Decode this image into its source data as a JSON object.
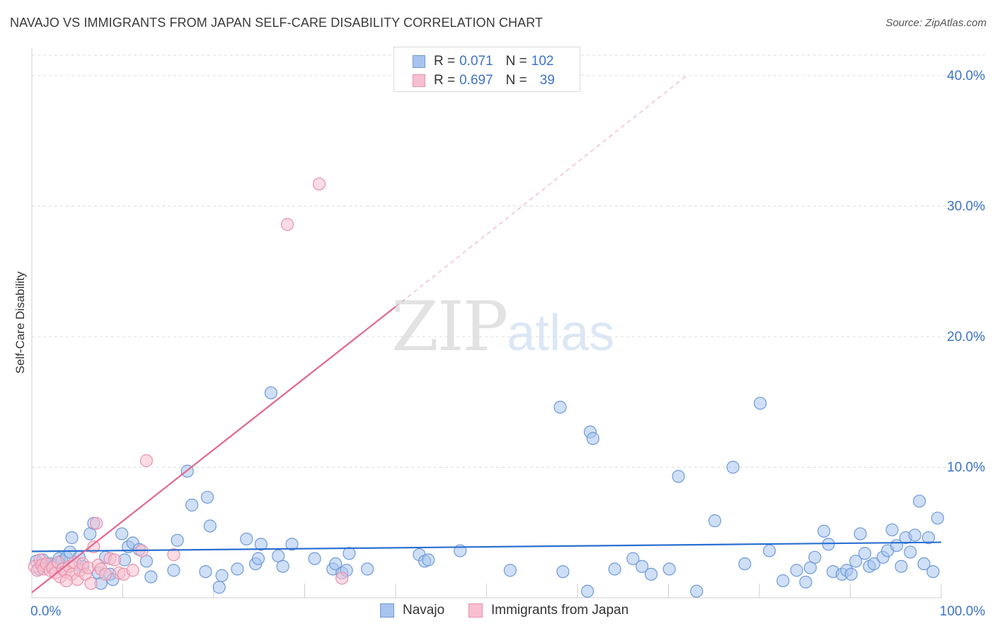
{
  "header": {
    "title": "NAVAJO VS IMMIGRANTS FROM JAPAN SELF-CARE DISABILITY CORRELATION CHART",
    "source": "Source: ZipAtlas.com"
  },
  "watermark": {
    "zip": "ZIP",
    "atlas": "atlas"
  },
  "legend": {
    "r_label": "R =",
    "n_label": "N =",
    "series": [
      {
        "name": "Navajo",
        "r": "0.071",
        "n": "102",
        "fill": "#a8c4ee",
        "stroke": "#6f9ad8"
      },
      {
        "name": "Immigrants from Japan",
        "r": "0.697",
        "n": "39",
        "fill": "#f7bfd0",
        "stroke": "#e891aa"
      }
    ]
  },
  "colors": {
    "navajo_point_fill": "#a8c4ee",
    "navajo_point_stroke": "#6f9ad8",
    "navajo_line": "#2a6fd1",
    "japan_point_fill": "#f7bfd0",
    "japan_point_stroke": "#e891aa",
    "japan_line": "#e4668f",
    "tick_label": "#3d73c8",
    "grid": "#dcdcdc"
  },
  "chart_data": {
    "type": "scatter",
    "title": "NAVAJO VS IMMIGRANTS FROM JAPAN SELF-CARE DISABILITY CORRELATION CHART",
    "xlabel": "",
    "ylabel": "Self-Care Disability",
    "xlim": [
      0,
      100
    ],
    "ylim": [
      0,
      42
    ],
    "x_tick_labels": [
      {
        "value": 0,
        "label": "0.0%"
      },
      {
        "value": 100,
        "label": "100.0%"
      }
    ],
    "y_ticks": [
      {
        "value": 10,
        "label": "10.0%"
      },
      {
        "value": 20,
        "label": "20.0%"
      },
      {
        "value": 30,
        "label": "30.0%"
      },
      {
        "value": 40,
        "label": "40.0%"
      }
    ],
    "x_minor_ticks": [
      10,
      20,
      30,
      40,
      50,
      60,
      70,
      80,
      90,
      100
    ],
    "series": [
      {
        "name": "Navajo",
        "trend": {
          "x0": 0,
          "y0": 3.55,
          "x1": 100,
          "y1": 4.25
        },
        "points": [
          [
            0.5,
            2.8
          ],
          [
            0.8,
            2.2
          ],
          [
            1.2,
            2.9
          ],
          [
            1.5,
            2.4
          ],
          [
            2,
            2.6
          ],
          [
            2.5,
            2.5
          ],
          [
            3,
            3.0
          ],
          [
            3.3,
            2.8
          ],
          [
            3.8,
            3.1
          ],
          [
            4.2,
            3.5
          ],
          [
            4.4,
            4.6
          ],
          [
            5.2,
            3.1
          ],
          [
            5.6,
            2.4
          ],
          [
            6.4,
            4.9
          ],
          [
            6.8,
            5.7
          ],
          [
            7.3,
            1.9
          ],
          [
            7.6,
            1.1
          ],
          [
            8.1,
            3.1
          ],
          [
            8.6,
            1.8
          ],
          [
            8.9,
            1.4
          ],
          [
            9.9,
            4.9
          ],
          [
            10.2,
            2.9
          ],
          [
            10.6,
            3.9
          ],
          [
            11.1,
            4.2
          ],
          [
            11.8,
            3.7
          ],
          [
            12.6,
            2.8
          ],
          [
            13.1,
            1.6
          ],
          [
            15.6,
            2.1
          ],
          [
            16.0,
            4.4
          ],
          [
            17.1,
            9.7
          ],
          [
            17.6,
            7.1
          ],
          [
            19.1,
            2.0
          ],
          [
            19.3,
            7.7
          ],
          [
            19.6,
            5.5
          ],
          [
            20.6,
            0.8
          ],
          [
            20.9,
            1.7
          ],
          [
            22.6,
            2.2
          ],
          [
            23.6,
            4.5
          ],
          [
            24.6,
            2.6
          ],
          [
            24.9,
            3.0
          ],
          [
            25.2,
            4.1
          ],
          [
            26.3,
            15.7
          ],
          [
            27.1,
            3.2
          ],
          [
            27.6,
            2.4
          ],
          [
            28.6,
            4.1
          ],
          [
            31.1,
            3.0
          ],
          [
            33.1,
            2.2
          ],
          [
            33.4,
            2.6
          ],
          [
            34.1,
            1.9
          ],
          [
            34.6,
            2.1
          ],
          [
            34.9,
            3.4
          ],
          [
            36.9,
            2.2
          ],
          [
            42.6,
            3.3
          ],
          [
            43.2,
            2.8
          ],
          [
            43.6,
            2.9
          ],
          [
            47.1,
            3.6
          ],
          [
            52.6,
            2.1
          ],
          [
            58.1,
            14.6
          ],
          [
            58.4,
            2.0
          ],
          [
            61.1,
            0.5
          ],
          [
            61.4,
            12.7
          ],
          [
            61.7,
            12.2
          ],
          [
            64.1,
            2.2
          ],
          [
            66.1,
            3.0
          ],
          [
            67.1,
            2.4
          ],
          [
            68.1,
            1.8
          ],
          [
            70.1,
            2.2
          ],
          [
            71.1,
            9.3
          ],
          [
            73.1,
            0.5
          ],
          [
            75.1,
            5.9
          ],
          [
            77.1,
            10.0
          ],
          [
            78.4,
            2.6
          ],
          [
            80.1,
            14.9
          ],
          [
            81.1,
            3.6
          ],
          [
            82.6,
            1.3
          ],
          [
            84.1,
            2.1
          ],
          [
            85.1,
            1.2
          ],
          [
            85.6,
            2.3
          ],
          [
            86.1,
            3.1
          ],
          [
            87.1,
            5.1
          ],
          [
            87.6,
            4.1
          ],
          [
            88.1,
            2.0
          ],
          [
            89.1,
            1.8
          ],
          [
            89.6,
            2.1
          ],
          [
            90.1,
            1.8
          ],
          [
            90.6,
            2.8
          ],
          [
            91.1,
            4.9
          ],
          [
            91.6,
            3.4
          ],
          [
            92.1,
            2.4
          ],
          [
            92.6,
            2.6
          ],
          [
            93.6,
            3.1
          ],
          [
            94.1,
            3.6
          ],
          [
            94.6,
            5.2
          ],
          [
            95.1,
            4.0
          ],
          [
            95.6,
            2.4
          ],
          [
            96.1,
            4.6
          ],
          [
            96.6,
            3.5
          ],
          [
            97.1,
            4.8
          ],
          [
            97.6,
            7.4
          ],
          [
            98.1,
            2.6
          ],
          [
            98.6,
            4.6
          ],
          [
            99.1,
            2.0
          ],
          [
            99.6,
            6.1
          ]
        ]
      },
      {
        "name": "Immigrants from Japan",
        "trend": {
          "x0": 0,
          "y0": 0.4,
          "x1": 40,
          "y1": 22.3,
          "dashed_to_x": 72,
          "dashed_to_y": 40
        },
        "points": [
          [
            0.3,
            2.4
          ],
          [
            0.6,
            2.1
          ],
          [
            0.9,
            2.9
          ],
          [
            1.1,
            2.5
          ],
          [
            1.3,
            2.2
          ],
          [
            1.6,
            2.6
          ],
          [
            2,
            2.1
          ],
          [
            2.3,
            2.3
          ],
          [
            2.6,
            1.9
          ],
          [
            2.9,
            2.7
          ],
          [
            3.1,
            1.6
          ],
          [
            3.4,
            2.2
          ],
          [
            3.7,
            2.0
          ],
          [
            4.1,
            2.4
          ],
          [
            4.4,
            1.8
          ],
          [
            4.7,
            2.7
          ],
          [
            5,
            1.4
          ],
          [
            5.3,
            2.1
          ],
          [
            5.6,
            2.6
          ],
          [
            5.9,
            1.8
          ],
          [
            6.2,
            2.3
          ],
          [
            6.5,
            1.1
          ],
          [
            6.8,
            3.9
          ],
          [
            7.1,
            5.7
          ],
          [
            7.3,
            2.5
          ],
          [
            7.6,
            2.2
          ],
          [
            8.1,
            1.8
          ],
          [
            8.6,
            3.0
          ],
          [
            9.1,
            2.9
          ],
          [
            9.6,
            1.9
          ],
          [
            10.1,
            1.8
          ],
          [
            11.1,
            2.1
          ],
          [
            12.1,
            3.6
          ],
          [
            12.6,
            10.5
          ],
          [
            15.6,
            3.3
          ],
          [
            28.1,
            28.6
          ],
          [
            31.6,
            31.7
          ],
          [
            34.1,
            1.5
          ],
          [
            3.8,
            1.3
          ]
        ]
      }
    ]
  }
}
